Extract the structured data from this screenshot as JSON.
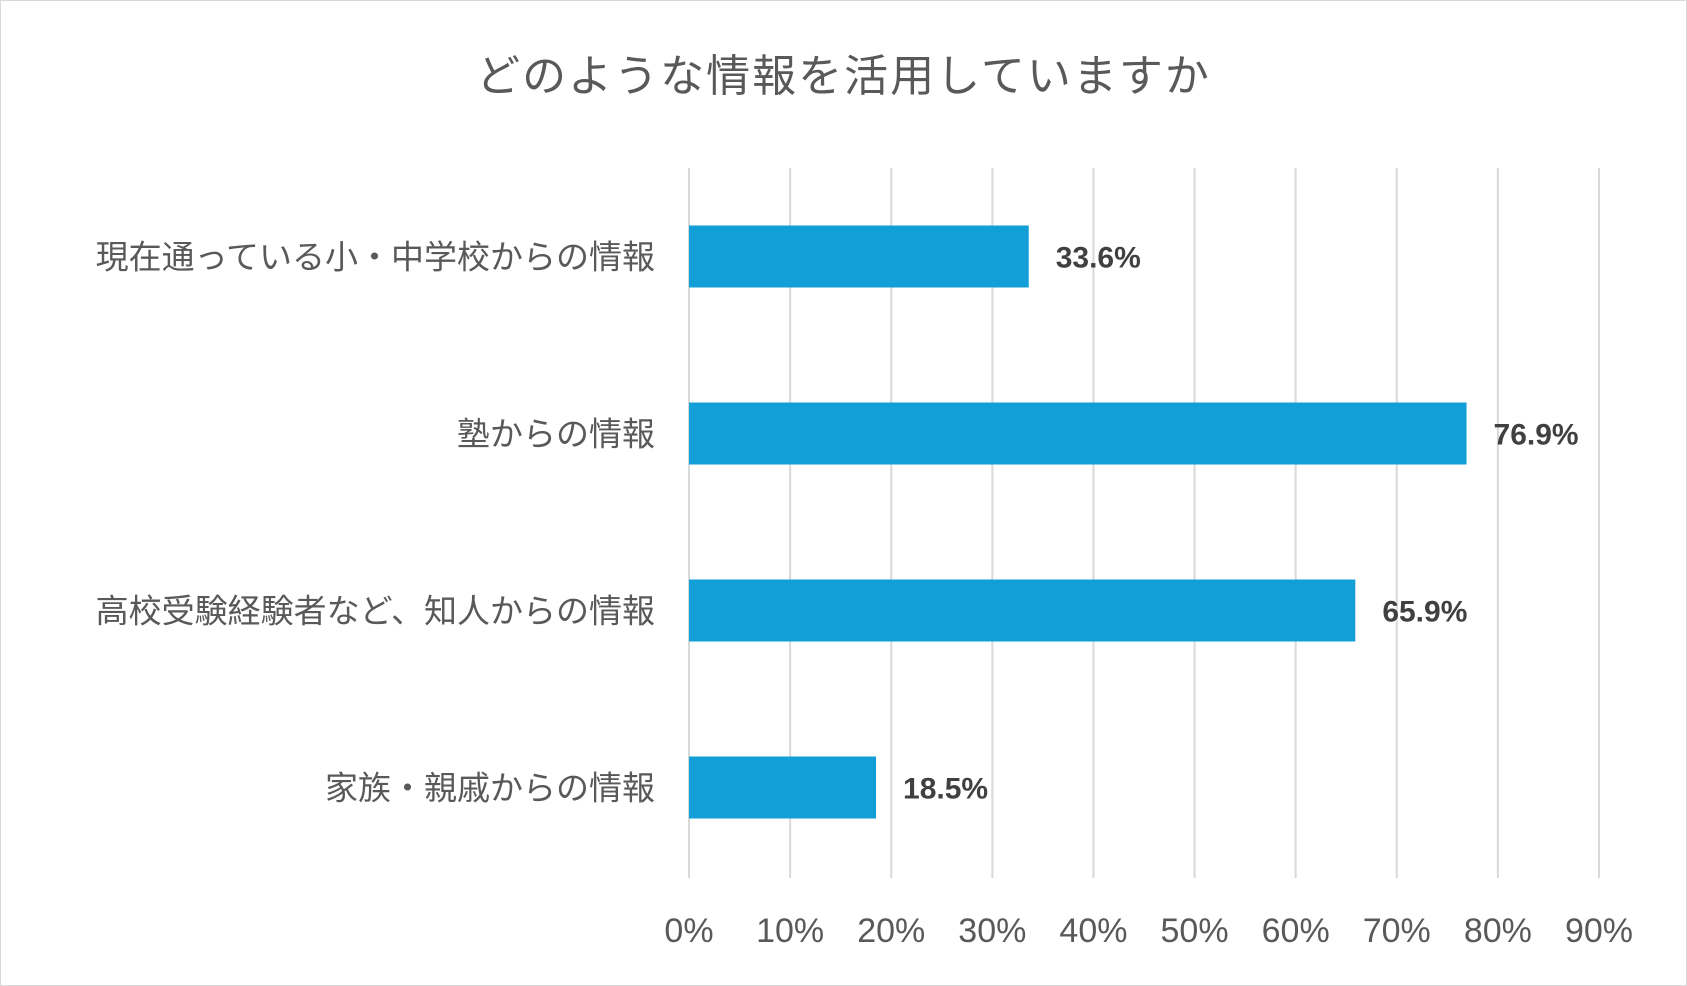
{
  "chart_data": {
    "type": "bar",
    "orientation": "horizontal",
    "title": "どのような情報を活用していますか",
    "categories": [
      "現在通っている小・中学校からの情報",
      "塾からの情報",
      "高校受験経験者など、知人からの情報",
      "家族・親戚からの情報"
    ],
    "values": [
      33.6,
      76.9,
      65.9,
      18.5
    ],
    "data_labels": [
      "33.6%",
      "76.9%",
      "65.9%",
      "18.5%"
    ],
    "xlim": [
      0,
      90
    ],
    "x_ticks": [
      "0%",
      "10%",
      "20%",
      "30%",
      "40%",
      "50%",
      "60%",
      "70%",
      "80%",
      "90%"
    ],
    "grid": "vertical",
    "legend": "none",
    "bar_color": "#129fd8",
    "grid_color": "#d9d9d9"
  }
}
